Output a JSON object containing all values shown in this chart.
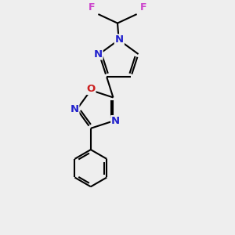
{
  "bg_color": "#eeeeee",
  "bond_color": "#000000",
  "N_color": "#2222cc",
  "O_color": "#cc2020",
  "F_color": "#cc44cc",
  "line_width": 1.5,
  "double_sep": 0.09,
  "font_size_atom": 8.5,
  "fig_width": 3.0,
  "fig_height": 3.0,
  "xlim": [
    0.5,
    5.5
  ],
  "ylim": [
    0.3,
    9.2
  ]
}
